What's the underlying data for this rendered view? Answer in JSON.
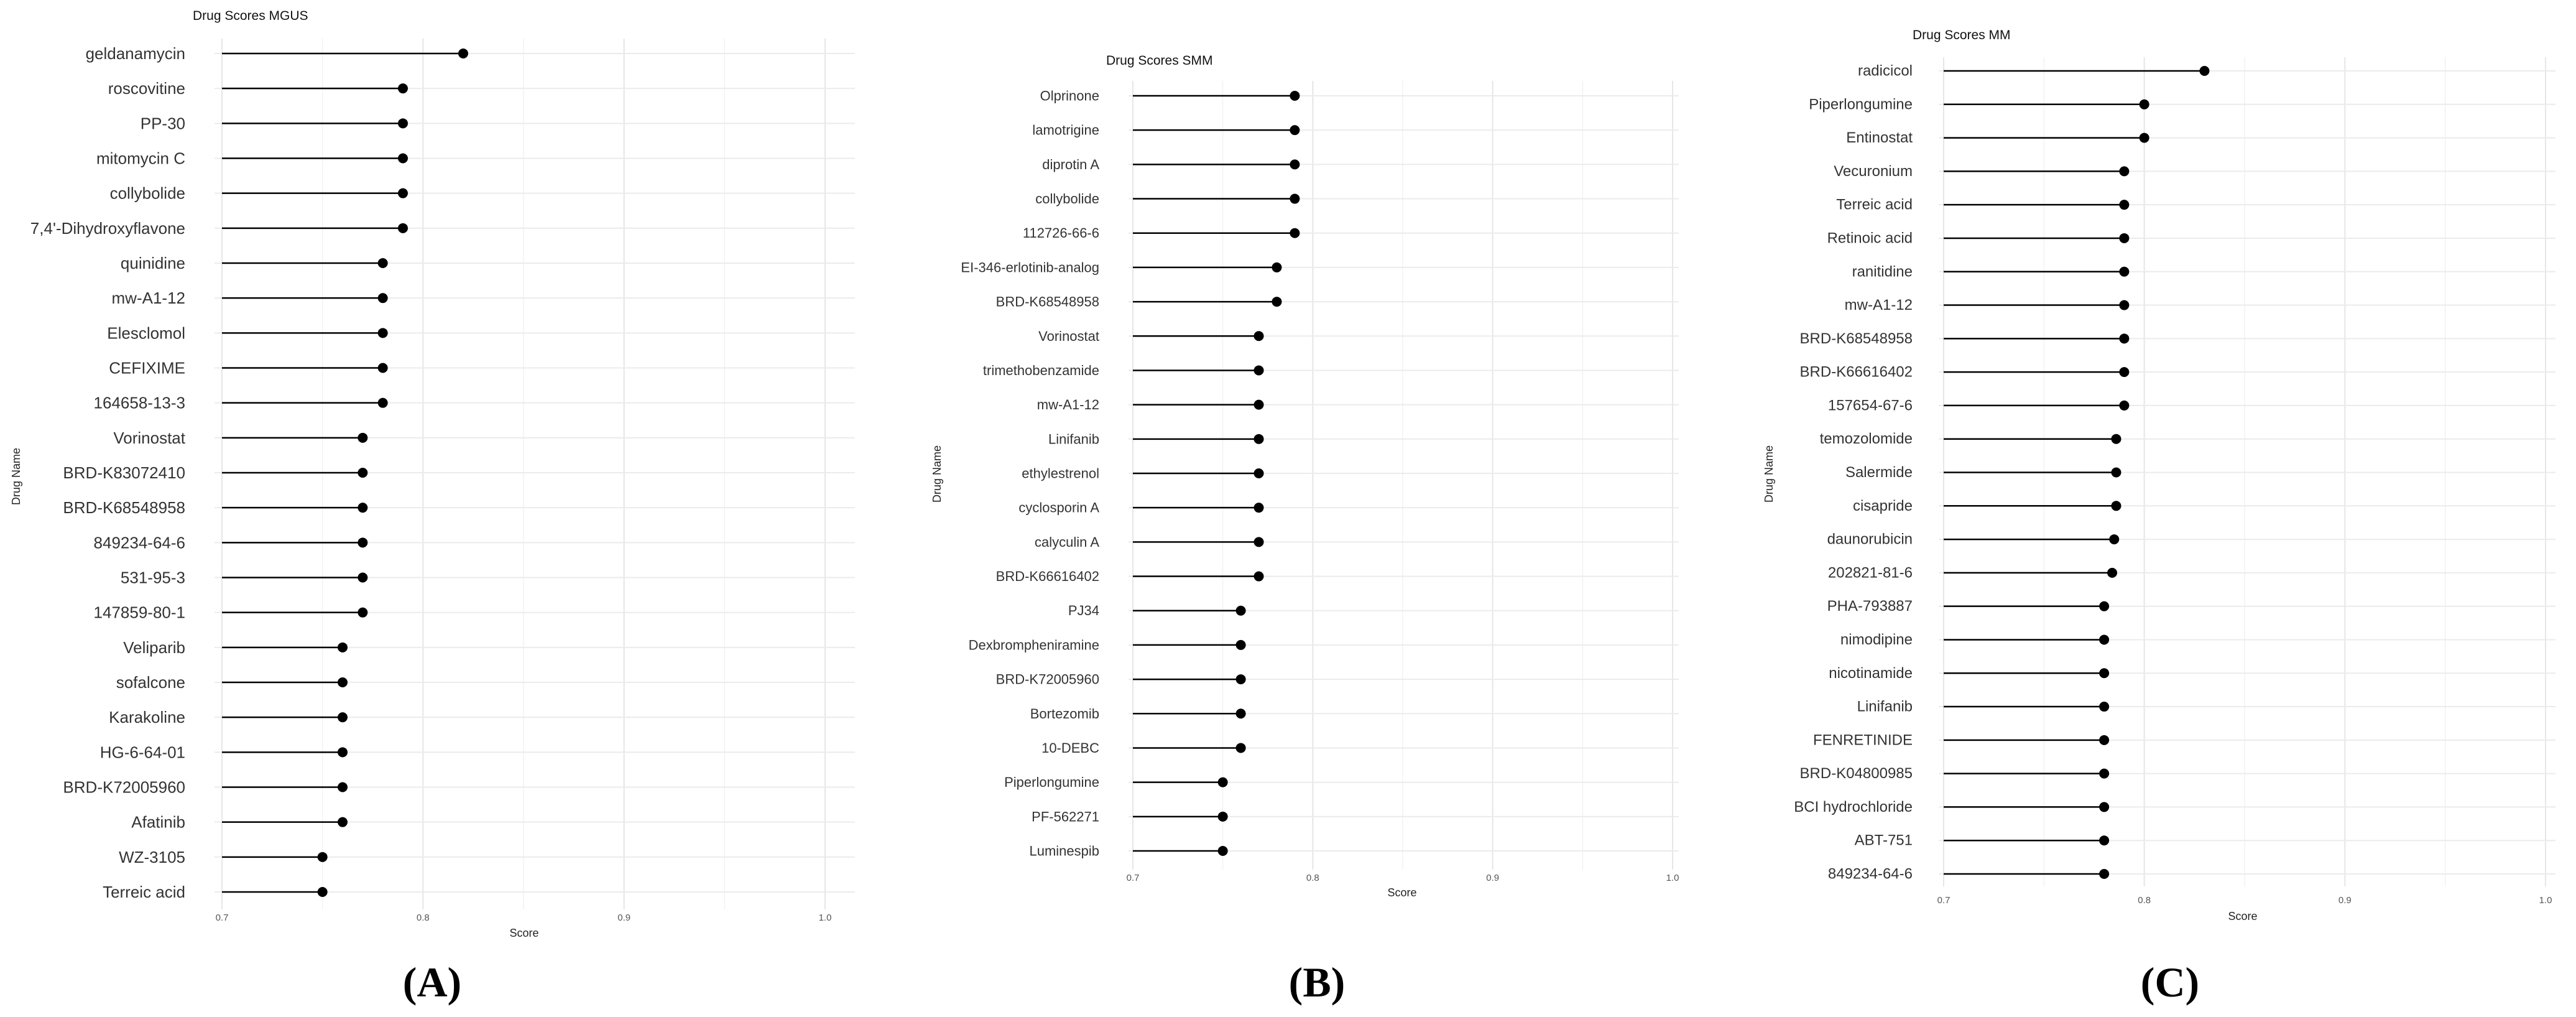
{
  "chart_data": [
    {
      "type": "lollipop",
      "title": "Drug Scores MGUS",
      "xlabel": "Score",
      "ylabel": "Drug Name",
      "xlim": [
        0.7,
        1.0
      ],
      "xticks": [
        "0.7",
        "0.8",
        "0.9",
        "1.0"
      ],
      "grid": true,
      "panel_label": "(A)",
      "categories": [
        "geldanamycin",
        "roscovitine",
        "PP-30",
        "mitomycin C",
        "collybolide",
        "7,4'-Dihydroxyflavone",
        "quinidine",
        "mw-A1-12",
        "Elesclomol",
        "CEFIXIME",
        "164658-13-3",
        "Vorinostat",
        "BRD-K83072410",
        "BRD-K68548958",
        "849234-64-6",
        "531-95-3",
        "147859-80-1",
        "Veliparib",
        "sofalcone",
        "Karakoline",
        "HG-6-64-01",
        "BRD-K72005960",
        "Afatinib",
        "WZ-3105",
        "Terreic acid"
      ],
      "values": [
        0.82,
        0.79,
        0.79,
        0.79,
        0.79,
        0.79,
        0.78,
        0.78,
        0.78,
        0.78,
        0.78,
        0.77,
        0.77,
        0.77,
        0.77,
        0.77,
        0.77,
        0.76,
        0.76,
        0.76,
        0.76,
        0.76,
        0.76,
        0.75,
        0.75
      ]
    },
    {
      "type": "lollipop",
      "title": "Drug Scores SMM",
      "xlabel": "Score",
      "ylabel": "Drug Name",
      "xlim": [
        0.7,
        1.0
      ],
      "xticks": [
        "0.7",
        "0.8",
        "0.9",
        "1.0"
      ],
      "grid": true,
      "panel_label": "(B)",
      "categories": [
        "Olprinone",
        "lamotrigine",
        "diprotin A",
        "collybolide",
        "112726-66-6",
        "EI-346-erlotinib-analog",
        "BRD-K68548958",
        "Vorinostat",
        "trimethobenzamide",
        "mw-A1-12",
        "Linifanib",
        "ethylestrenol",
        "cyclosporin A",
        "calyculin A",
        "BRD-K66616402",
        "PJ34",
        "Dexbrompheniramine",
        "BRD-K72005960",
        "Bortezomib",
        "10-DEBC",
        "Piperlongumine",
        "PF-562271",
        "Luminespib"
      ],
      "values": [
        0.79,
        0.79,
        0.79,
        0.79,
        0.79,
        0.78,
        0.78,
        0.77,
        0.77,
        0.77,
        0.77,
        0.77,
        0.77,
        0.77,
        0.77,
        0.76,
        0.76,
        0.76,
        0.76,
        0.76,
        0.75,
        0.75,
        0.75
      ]
    },
    {
      "type": "lollipop",
      "title": "Drug Scores MM",
      "xlabel": "Score",
      "ylabel": "Drug Name",
      "xlim": [
        0.7,
        1.0
      ],
      "xticks": [
        "0.7",
        "0.8",
        "0.9",
        "1.0"
      ],
      "grid": true,
      "panel_label": "(C)",
      "categories": [
        "radicicol",
        "Piperlongumine",
        "Entinostat",
        "Vecuronium",
        "Terreic acid",
        "Retinoic acid",
        "ranitidine",
        "mw-A1-12",
        "BRD-K68548958",
        "BRD-K66616402",
        "157654-67-6",
        "temozolomide",
        "Salermide",
        "cisapride",
        "daunorubicin",
        "202821-81-6",
        "PHA-793887",
        "nimodipine",
        "nicotinamide",
        "Linifanib",
        "FENRETINIDE",
        "BRD-K04800985",
        "BCI hydrochloride",
        "ABT-751",
        "849234-64-6"
      ],
      "values": [
        0.83,
        0.8,
        0.8,
        0.79,
        0.79,
        0.79,
        0.79,
        0.79,
        0.79,
        0.79,
        0.79,
        0.786,
        0.786,
        0.786,
        0.785,
        0.784,
        0.78,
        0.78,
        0.78,
        0.78,
        0.78,
        0.78,
        0.78,
        0.78,
        0.78
      ]
    }
  ]
}
